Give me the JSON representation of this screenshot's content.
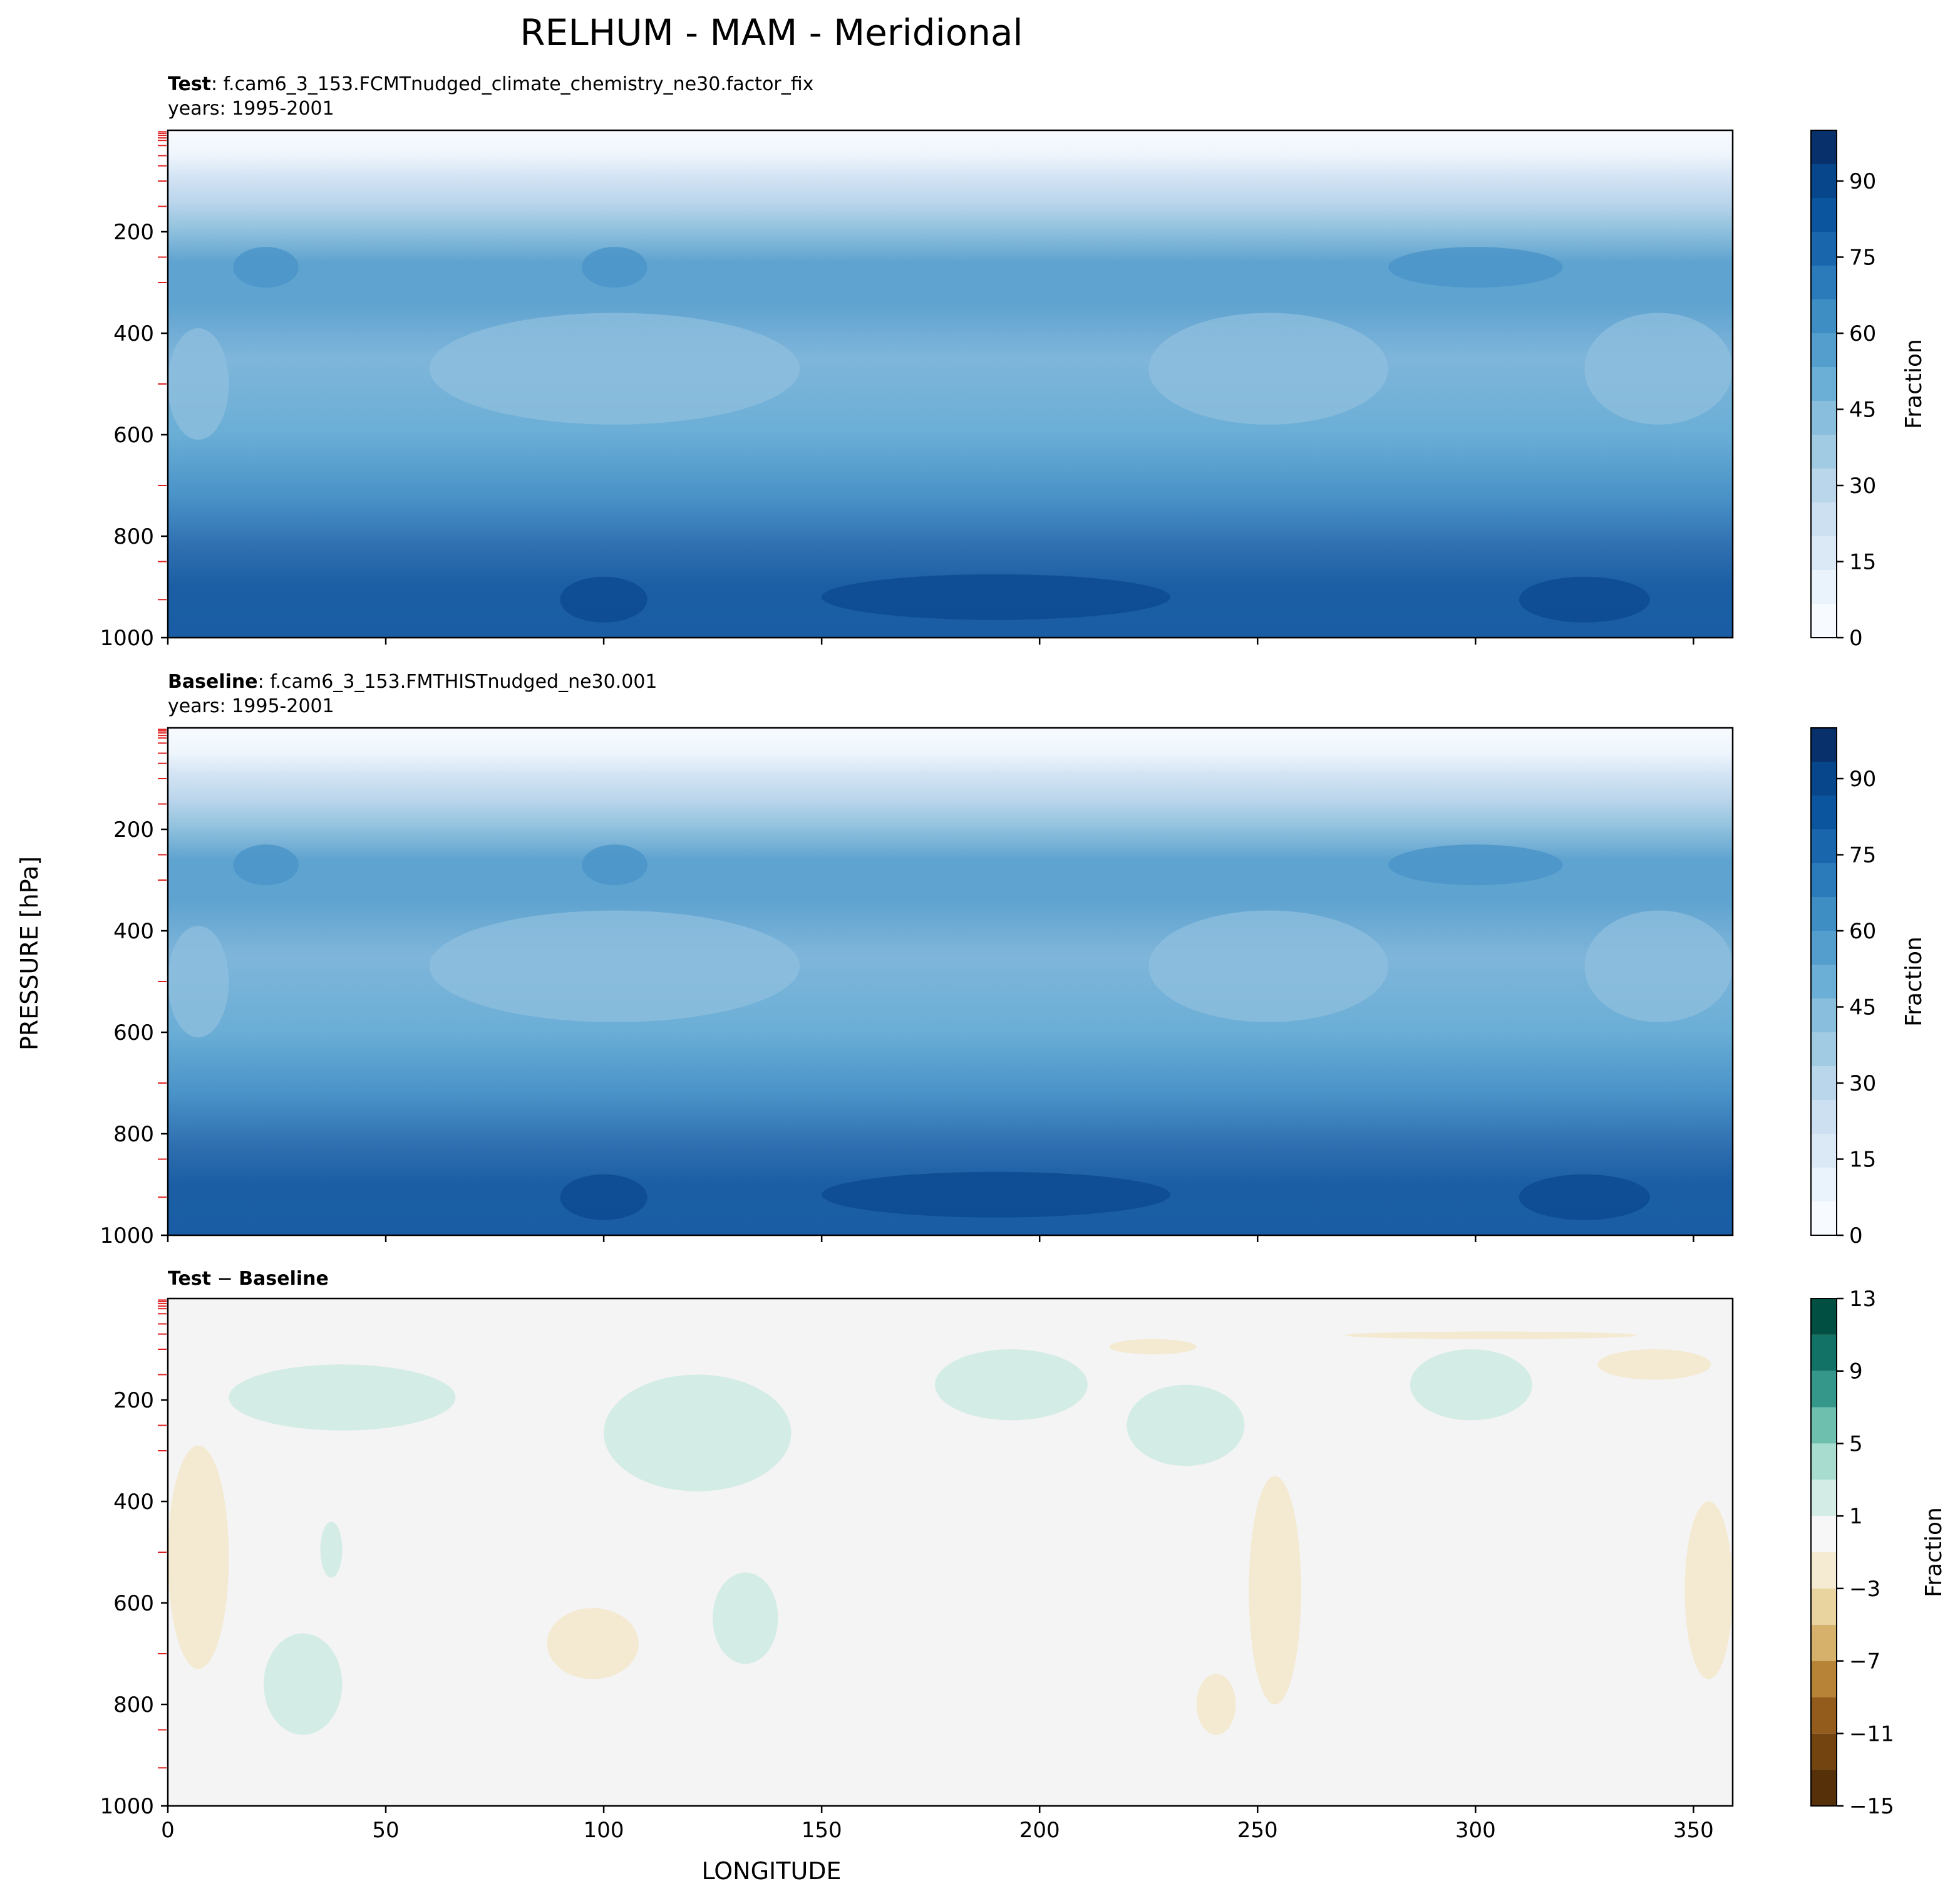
{
  "figure": {
    "title": "RELHUM - MAM - Meridional",
    "ylabel": "PRESSURE [hPa]",
    "xlabel": "LONGITUDE"
  },
  "chart_data": [
    {
      "type": "heatmap",
      "panel": "test",
      "label_bold": "Test",
      "label_rest": ": f.cam6_3_153.FCMTnudged_climate_chemistry_ne30.factor_fix",
      "years": "years: 1995-2001",
      "xlim": [
        0,
        359
      ],
      "ylim": [
        1000,
        0
      ],
      "y_inverted": true,
      "xticks": [
        0,
        50,
        100,
        150,
        200,
        250,
        300,
        350
      ],
      "xtick_labels_shown": false,
      "yticks": [
        200,
        400,
        600,
        800,
        1000
      ],
      "colorbar": {
        "label": "Fraction",
        "colormap": "Blues",
        "range": [
          0,
          100
        ],
        "ticks": [
          0,
          15,
          30,
          45,
          60,
          75,
          90
        ]
      },
      "approx_profile_by_pressure": [
        {
          "p": 10,
          "value": 2
        },
        {
          "p": 50,
          "value": 8
        },
        {
          "p": 100,
          "value": 20
        },
        {
          "p": 180,
          "value": 35
        },
        {
          "p": 260,
          "value": 55
        },
        {
          "p": 400,
          "value": 45
        },
        {
          "p": 600,
          "value": 50
        },
        {
          "p": 800,
          "value": 72
        },
        {
          "p": 900,
          "value": 82
        },
        {
          "p": 1000,
          "value": 80
        }
      ]
    },
    {
      "type": "heatmap",
      "panel": "baseline",
      "label_bold": "Baseline",
      "label_rest": ": f.cam6_3_153.FMTHISTnudged_ne30.001",
      "years": "years: 1995-2001",
      "xlim": [
        0,
        359
      ],
      "ylim": [
        1000,
        0
      ],
      "y_inverted": true,
      "xticks": [
        0,
        50,
        100,
        150,
        200,
        250,
        300,
        350
      ],
      "xtick_labels_shown": false,
      "yticks": [
        200,
        400,
        600,
        800,
        1000
      ],
      "colorbar": {
        "label": "Fraction",
        "colormap": "Blues",
        "range": [
          0,
          100
        ],
        "ticks": [
          0,
          15,
          30,
          45,
          60,
          75,
          90
        ]
      },
      "approx_profile_by_pressure": [
        {
          "p": 10,
          "value": 2
        },
        {
          "p": 50,
          "value": 8
        },
        {
          "p": 100,
          "value": 20
        },
        {
          "p": 180,
          "value": 35
        },
        {
          "p": 260,
          "value": 55
        },
        {
          "p": 400,
          "value": 45
        },
        {
          "p": 600,
          "value": 50
        },
        {
          "p": 800,
          "value": 72
        },
        {
          "p": 900,
          "value": 82
        },
        {
          "p": 1000,
          "value": 80
        }
      ]
    },
    {
      "type": "heatmap",
      "panel": "difference",
      "label_bold_a": "Test",
      "label_sep": " − ",
      "label_bold_b": "Baseline",
      "xlim": [
        0,
        359
      ],
      "ylim": [
        1000,
        0
      ],
      "y_inverted": true,
      "xticks": [
        0,
        50,
        100,
        150,
        200,
        250,
        300,
        350
      ],
      "xtick_labels_shown": true,
      "yticks": [
        200,
        400,
        600,
        800,
        1000
      ],
      "colorbar": {
        "label": "Fraction",
        "colormap": "BrBG",
        "range": [
          -15,
          13
        ],
        "ticks": [
          13,
          9,
          5,
          1,
          -3,
          -7,
          -11,
          -15
        ],
        "tick_labels": [
          "13",
          "9",
          "5",
          "1",
          "−3",
          "−7",
          "−11",
          "−15"
        ]
      },
      "background_value_range": [
        -1,
        1
      ],
      "positive_patches_approx": [
        {
          "lon": [
            14,
            66
          ],
          "p": [
            130,
            260
          ],
          "value": 2
        },
        {
          "lon": [
            100,
            143
          ],
          "p": [
            150,
            380
          ],
          "value": 2
        },
        {
          "lon": [
            125,
            140
          ],
          "p": [
            540,
            720
          ],
          "value": 2
        },
        {
          "lon": [
            176,
            211
          ],
          "p": [
            100,
            240
          ],
          "value": 2
        },
        {
          "lon": [
            220,
            247
          ],
          "p": [
            170,
            330
          ],
          "value": 2
        },
        {
          "lon": [
            285,
            313
          ],
          "p": [
            100,
            240
          ],
          "value": 2
        },
        {
          "lon": [
            35,
            40
          ],
          "p": [
            440,
            550
          ],
          "value": 2
        },
        {
          "lon": [
            22,
            40
          ],
          "p": [
            660,
            860
          ],
          "value": 2
        }
      ],
      "negative_patches_approx": [
        {
          "lon": [
            0,
            14
          ],
          "p": [
            290,
            730
          ],
          "value": -2
        },
        {
          "lon": [
            87,
            108
          ],
          "p": [
            610,
            750
          ],
          "value": -2
        },
        {
          "lon": [
            248,
            260
          ],
          "p": [
            350,
            800
          ],
          "value": -2
        },
        {
          "lon": [
            236,
            245
          ],
          "p": [
            740,
            860
          ],
          "value": -2
        },
        {
          "lon": [
            348,
            359
          ],
          "p": [
            400,
            750
          ],
          "value": -2
        },
        {
          "lon": [
            216,
            236
          ],
          "p": [
            80,
            110
          ],
          "value": -2
        },
        {
          "lon": [
            328,
            354
          ],
          "p": [
            100,
            160
          ],
          "value": -2
        },
        {
          "lon": [
            270,
            337
          ],
          "p": [
            65,
            80
          ],
          "value": -2
        }
      ]
    }
  ]
}
